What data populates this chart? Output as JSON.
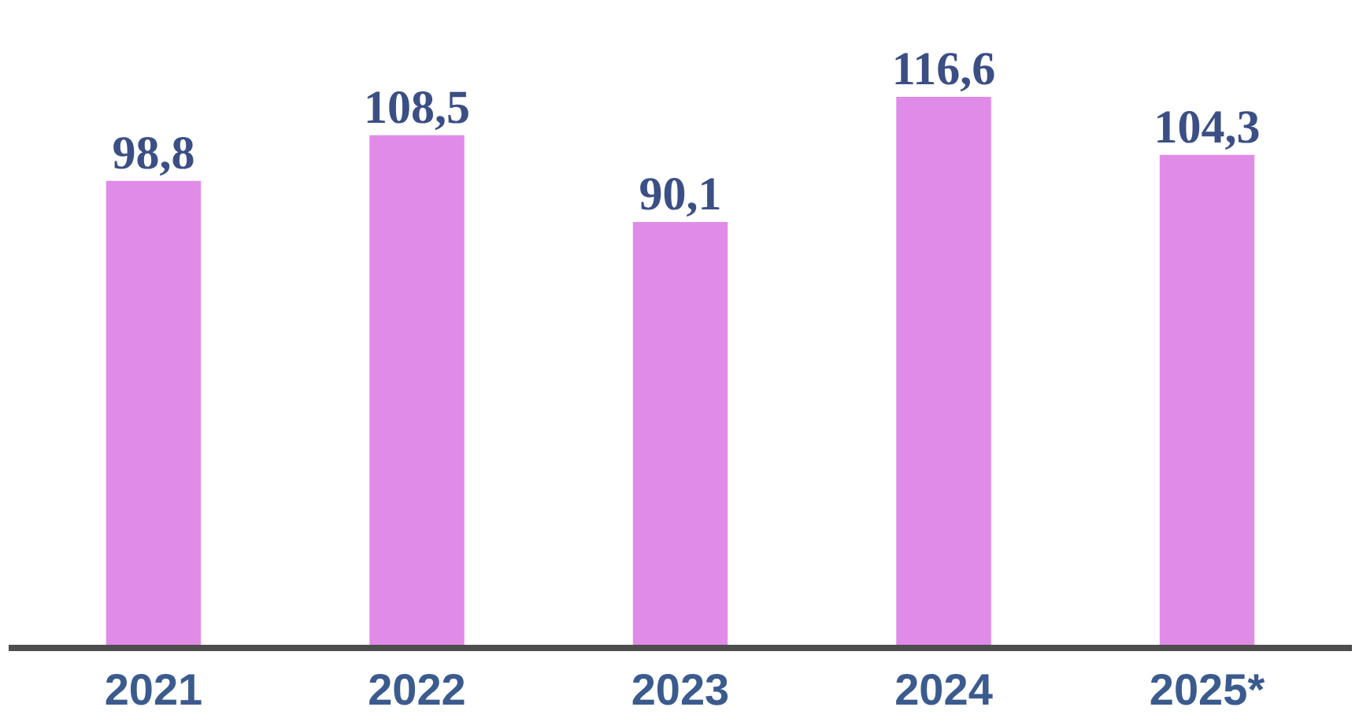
{
  "chart_data": {
    "type": "bar",
    "categories": [
      "2021",
      "2022",
      "2023",
      "2024",
      "2025*"
    ],
    "values": [
      98.8,
      108.5,
      90.1,
      116.6,
      104.3
    ],
    "color": "#e18be9",
    "data_labels": true,
    "value_labels": [
      "98,8",
      "108,5",
      "90,1",
      "116,6",
      "104,3"
    ]
  }
}
